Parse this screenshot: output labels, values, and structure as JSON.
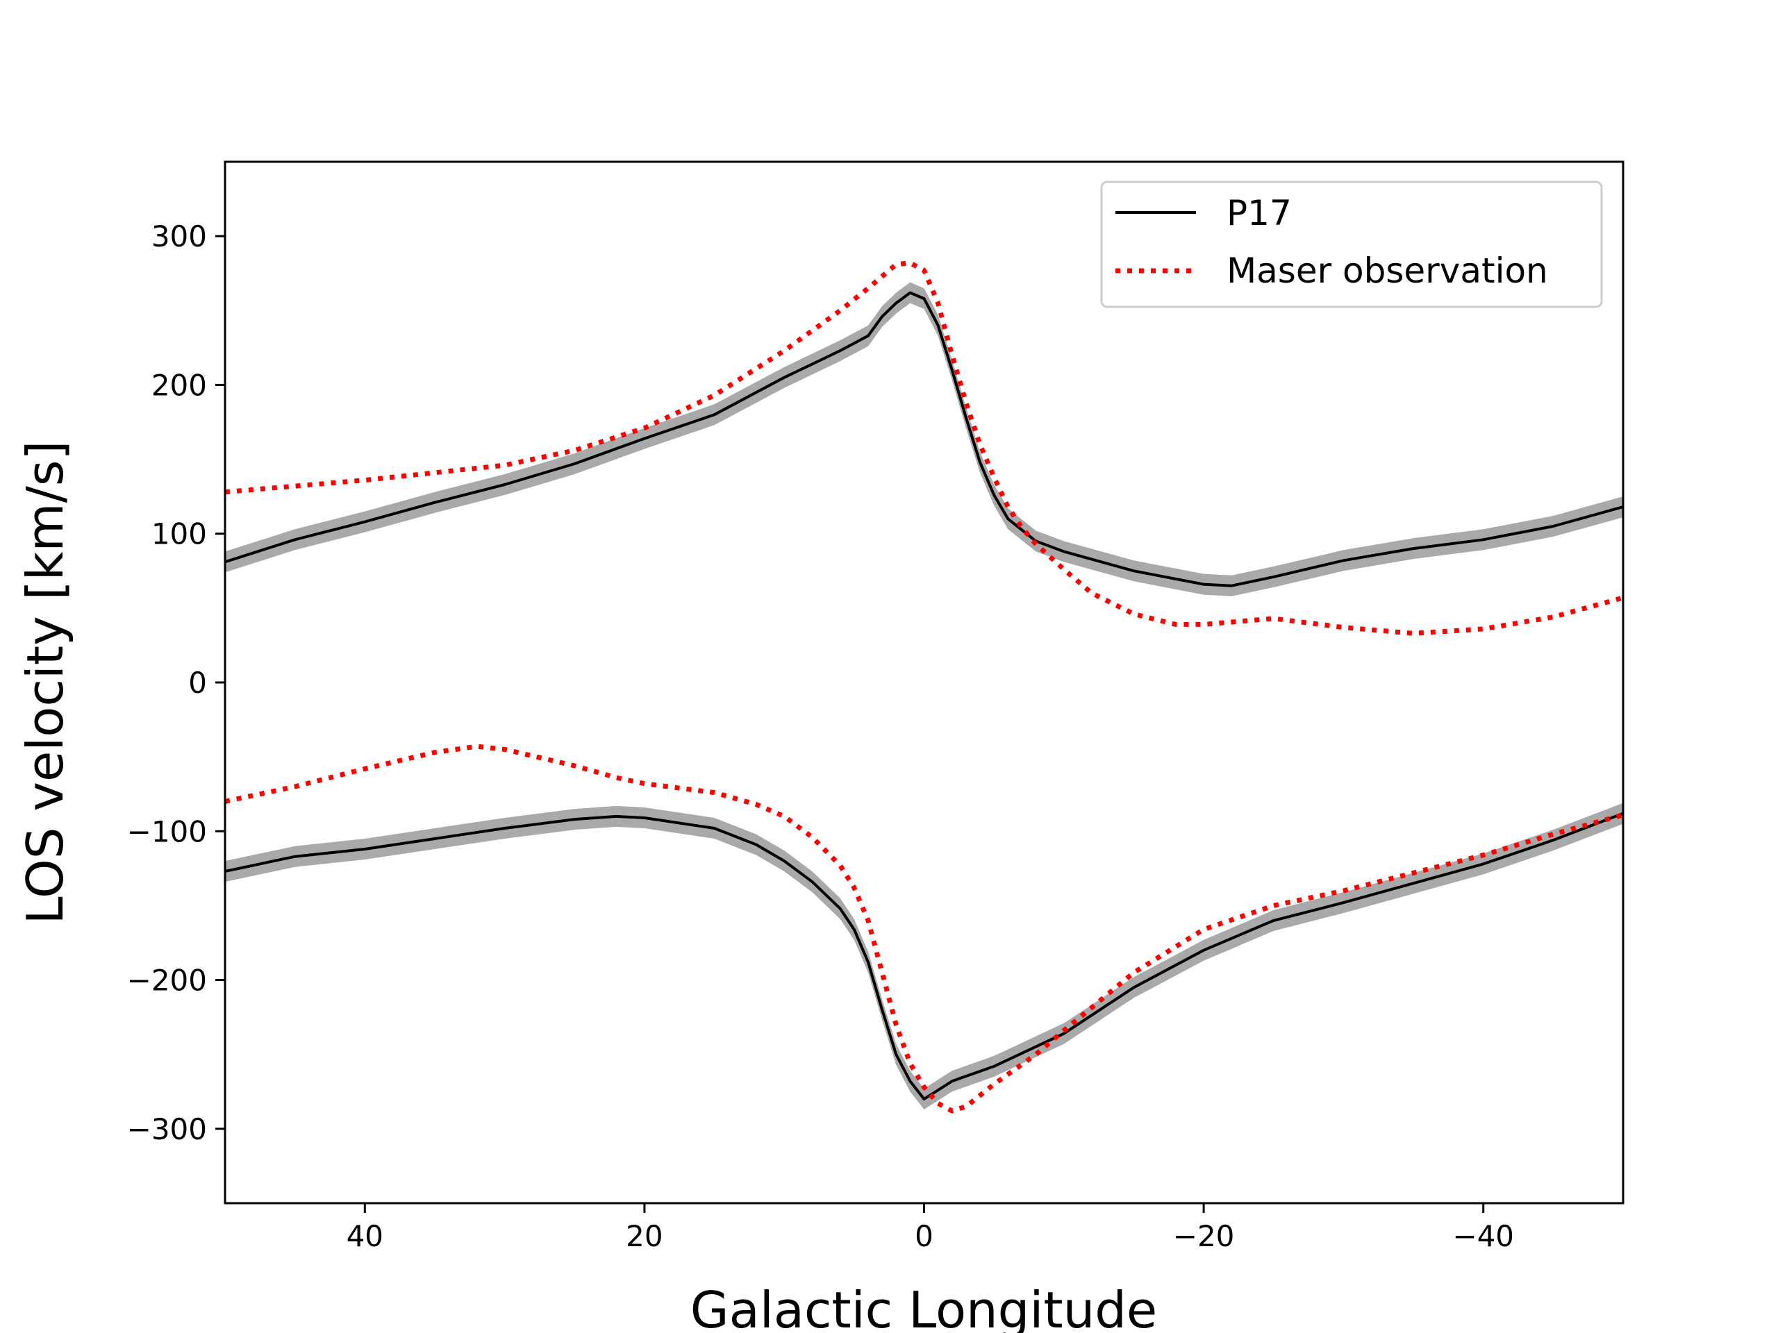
{
  "chart_data": {
    "type": "line",
    "title": "",
    "xlabel": "Galactic Longitude",
    "ylabel": "LOS velocity [km/s]",
    "xlim": [
      50,
      -50
    ],
    "ylim": [
      -350,
      350
    ],
    "xticks": [
      40,
      20,
      0,
      -20,
      -40
    ],
    "yticks": [
      300,
      200,
      100,
      0,
      -100,
      -200,
      -300
    ],
    "xtick_labels": [
      "40",
      "20",
      "0",
      "−20",
      "−40"
    ],
    "ytick_labels": [
      "300",
      "200",
      "100",
      "0",
      "−100",
      "−200",
      "−300"
    ],
    "legend_position": "top-right",
    "colors": {
      "p17": "#000000",
      "band": "#a9a9a9",
      "maser": "#ff0000"
    },
    "series": [
      {
        "name": "P17",
        "style": "solid",
        "band_halfwidth": 7,
        "segments": [
          {
            "x": [
              50,
              45,
              40,
              35,
              30,
              25,
              20,
              15,
              10,
              8,
              6,
              4,
              3,
              2,
              1,
              0,
              -1,
              -2,
              -3,
              -4,
              -5,
              -6,
              -8,
              -10,
              -15,
              -20,
              -22,
              -25,
              -30,
              -35,
              -40,
              -45,
              -50
            ],
            "y": [
              81,
              96,
              108,
              121,
              133,
              147,
              164,
              180,
              205,
              214,
              223,
              233,
              246,
              255,
              262,
              258,
              240,
              210,
              178,
              148,
              126,
              110,
              95,
              88,
              75,
              66,
              65,
              71,
              82,
              90,
              96,
              105,
              118
            ]
          },
          {
            "x": [
              50,
              45,
              40,
              35,
              30,
              25,
              22,
              20,
              15,
              12,
              10,
              8,
              6,
              5,
              4,
              3,
              2,
              1,
              0,
              -2,
              -5,
              -10,
              -15,
              -20,
              -25,
              -30,
              -35,
              -40,
              -45,
              -50
            ],
            "y": [
              -127,
              -117,
              -112,
              -105,
              -98,
              -92,
              -90,
              -91,
              -98,
              -109,
              -120,
              -134,
              -152,
              -166,
              -188,
              -220,
              -250,
              -268,
              -280,
              -268,
              -258,
              -236,
              -205,
              -180,
              -160,
              -148,
              -135,
              -122,
              -106,
              -88
            ]
          }
        ]
      },
      {
        "name": "Maser observation",
        "style": "dotted",
        "segments": [
          {
            "x": [
              50,
              40,
              30,
              25,
              20,
              15,
              10,
              6,
              4,
              3,
              2,
              1,
              0,
              -1,
              -2,
              -3,
              -4,
              -5,
              -6,
              -7,
              -8,
              -10,
              -12,
              -15,
              -18,
              -20,
              -25,
              -30,
              -35,
              -40,
              -45,
              -50
            ],
            "y": [
              128,
              136,
              146,
              156,
              171,
              193,
              223,
              250,
              265,
              273,
              281,
              282,
              277,
              255,
              220,
              188,
              160,
              138,
              118,
              104,
              93,
              76,
              60,
              46,
              39,
              39,
              43,
              37,
              33,
              36,
              44,
              57
            ]
          },
          {
            "x": [
              50,
              45,
              40,
              35,
              32,
              30,
              25,
              22,
              20,
              15,
              12,
              10,
              8,
              6,
              5,
              4,
              3,
              2,
              1,
              0,
              -1,
              -2,
              -3,
              -5,
              -8,
              -10,
              -15,
              -20,
              -25,
              -30,
              -35,
              -40,
              -45,
              -50
            ],
            "y": [
              -80,
              -70,
              -58,
              -47,
              -43,
              -45,
              -56,
              -64,
              -68,
              -74,
              -82,
              -90,
              -104,
              -123,
              -138,
              -160,
              -195,
              -230,
              -256,
              -272,
              -283,
              -288,
              -285,
              -270,
              -250,
              -234,
              -195,
              -166,
              -150,
              -140,
              -128,
              -116,
              -102,
              -89
            ]
          }
        ]
      }
    ]
  }
}
